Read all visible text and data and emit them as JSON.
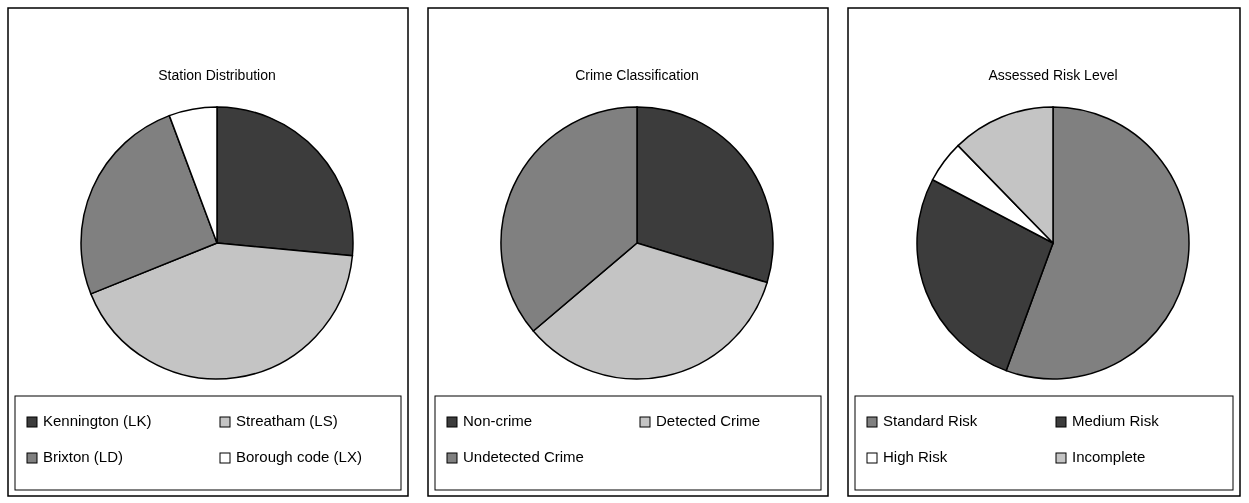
{
  "chart_data": [
    {
      "type": "pie",
      "title": "Station Distribution",
      "categories": [
        "Kennington (LK)",
        "Streatham (LS)",
        "Brixton (LD)",
        "Borough code (LX)"
      ],
      "values": [
        26.5,
        42.4,
        25.4,
        5.7
      ],
      "colors": [
        "#3c3c3c",
        "#c4c4c4",
        "#808080",
        "#ffffff"
      ],
      "legend": "bottom"
    },
    {
      "type": "pie",
      "title": "Crime Classification",
      "categories": [
        "Non-crime",
        "Detected Crime",
        "Undetected Crime"
      ],
      "values": [
        29.7,
        34.1,
        36.2
      ],
      "colors": [
        "#3c3c3c",
        "#c4c4c4",
        "#808080"
      ],
      "legend": "bottom"
    },
    {
      "type": "pie",
      "title": "Assessed Risk Level",
      "categories": [
        "Standard Risk",
        "Medium Risk",
        "High Risk",
        "Incomplete"
      ],
      "values": [
        55.6,
        27.1,
        5.0,
        12.3
      ],
      "colors": [
        "#808080",
        "#3c3c3c",
        "#ffffff",
        "#c4c4c4"
      ],
      "legend": "bottom"
    }
  ]
}
